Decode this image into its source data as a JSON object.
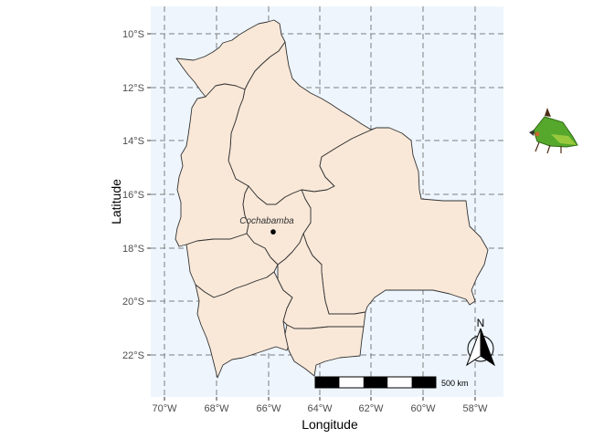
{
  "map": {
    "x_title": "Longitude",
    "y_title": "Latitude",
    "x_ticks": [
      "70°W",
      "68°W",
      "66°W",
      "64°W",
      "62°W",
      "60°W",
      "58°W"
    ],
    "y_ticks": [
      "10°S",
      "12°S",
      "14°S",
      "16°S",
      "18°S",
      "20°S",
      "22°S"
    ],
    "city": {
      "name": "Cochabamba",
      "lon": -65.8,
      "lat": -17.4
    },
    "scale_bar": {
      "label": "500 km"
    },
    "north_arrow": {
      "label": "N"
    },
    "colors": {
      "panel": "#eef5fd",
      "grid": "#7f7f7f",
      "land": "#f9e8d8",
      "border": "#333333"
    },
    "insect_icon": "treehopper-insect-icon"
  }
}
